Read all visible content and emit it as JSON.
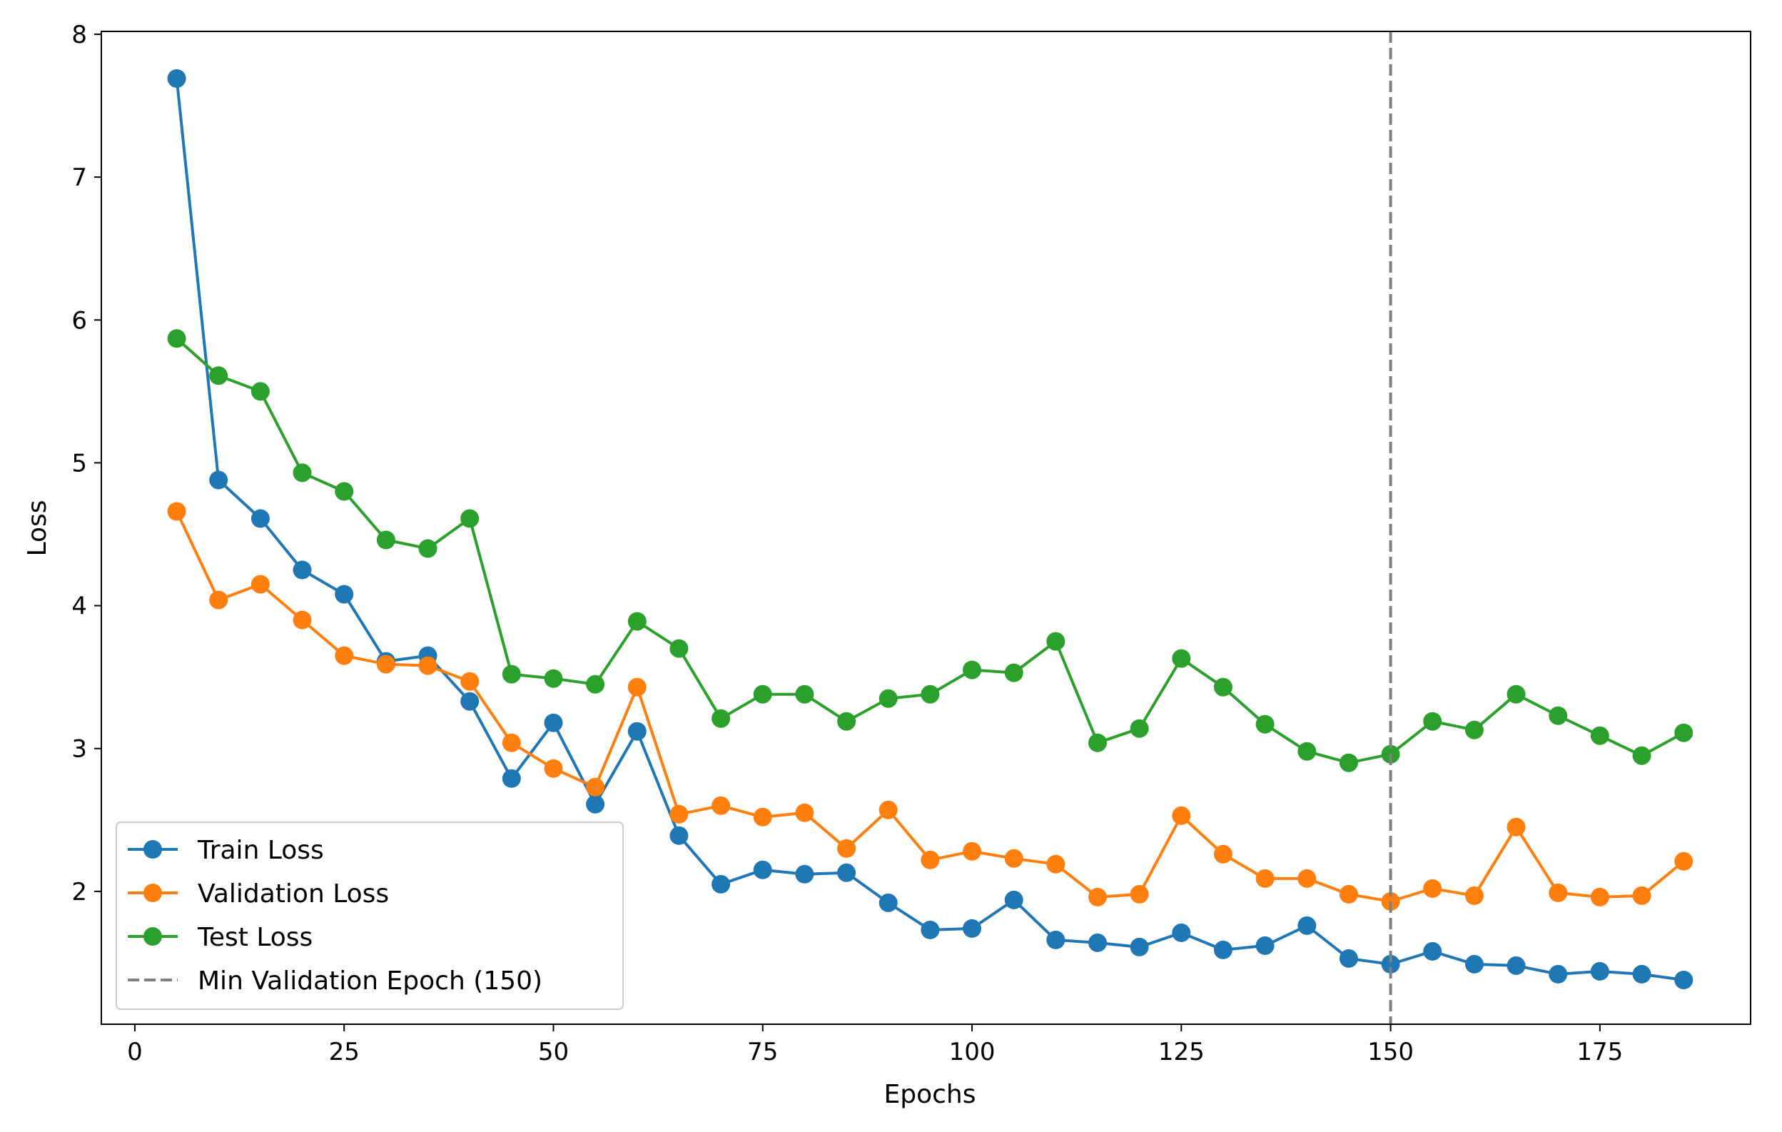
{
  "chart_data": {
    "type": "line",
    "xlabel": "Epochs",
    "ylabel": "Loss",
    "xlim": [
      -4,
      193
    ],
    "ylim": [
      1.07,
      8.02
    ],
    "xticks": [
      0,
      25,
      50,
      75,
      100,
      125,
      150,
      175
    ],
    "yticks": [
      2,
      3,
      4,
      5,
      6,
      7,
      8
    ],
    "grid": false,
    "legend_position": "lower-left",
    "x": [
      5,
      10,
      15,
      20,
      25,
      30,
      35,
      40,
      45,
      50,
      55,
      60,
      65,
      70,
      75,
      80,
      85,
      90,
      95,
      100,
      105,
      110,
      115,
      120,
      125,
      130,
      135,
      140,
      145,
      150,
      155,
      160,
      165,
      170,
      175,
      180,
      185
    ],
    "series": [
      {
        "name": "Train Loss",
        "color": "#1f77b4",
        "marker": "circle",
        "values": [
          7.69,
          4.88,
          4.61,
          4.25,
          4.08,
          3.61,
          3.65,
          3.33,
          2.79,
          3.18,
          2.61,
          3.12,
          2.39,
          2.05,
          2.15,
          2.12,
          2.13,
          1.92,
          1.73,
          1.74,
          1.94,
          1.66,
          1.64,
          1.61,
          1.71,
          1.59,
          1.62,
          1.76,
          1.53,
          1.49,
          1.58,
          1.49,
          1.48,
          1.42,
          1.44,
          1.42,
          1.38
        ]
      },
      {
        "name": "Validation Loss",
        "color": "#ff7f0e",
        "marker": "circle",
        "values": [
          4.66,
          4.04,
          4.15,
          3.9,
          3.65,
          3.59,
          3.58,
          3.47,
          3.04,
          2.86,
          2.73,
          3.43,
          2.54,
          2.6,
          2.52,
          2.55,
          2.3,
          2.57,
          2.22,
          2.28,
          2.23,
          2.19,
          1.96,
          1.98,
          2.53,
          2.26,
          2.09,
          2.09,
          1.98,
          1.93,
          2.02,
          1.97,
          2.45,
          1.99,
          1.96,
          1.97,
          2.21
        ]
      },
      {
        "name": "Test Loss",
        "color": "#2ca02c",
        "marker": "circle",
        "values": [
          5.87,
          5.61,
          5.5,
          4.93,
          4.8,
          4.46,
          4.4,
          4.61,
          3.52,
          3.49,
          3.45,
          3.89,
          3.7,
          3.21,
          3.38,
          3.38,
          3.19,
          3.35,
          3.38,
          3.55,
          3.53,
          3.75,
          3.04,
          3.14,
          3.63,
          3.43,
          3.17,
          2.98,
          2.9,
          2.96,
          3.19,
          3.13,
          3.38,
          3.23,
          3.09,
          2.95,
          3.11
        ]
      }
    ],
    "vlines": [
      {
        "name": "Min Validation Epoch (150)",
        "x": 150,
        "color": "#808080",
        "style": "dashed"
      }
    ]
  }
}
